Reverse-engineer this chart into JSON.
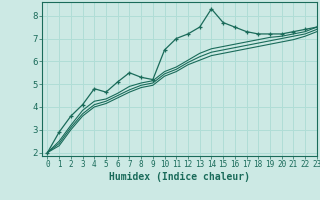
{
  "title": "",
  "xlabel": "Humidex (Indice chaleur)",
  "bg_color": "#cce9e4",
  "grid_color": "#b0ddd6",
  "line_color": "#1a6b5a",
  "xlim": [
    -0.5,
    23
  ],
  "ylim": [
    1.85,
    8.6
  ],
  "xticks": [
    0,
    1,
    2,
    3,
    4,
    5,
    6,
    7,
    8,
    9,
    10,
    11,
    12,
    13,
    14,
    15,
    16,
    17,
    18,
    19,
    20,
    21,
    22,
    23
  ],
  "yticks": [
    2,
    3,
    4,
    5,
    6,
    7,
    8
  ],
  "series": [
    [
      2.0,
      2.9,
      3.6,
      4.1,
      4.8,
      4.65,
      5.1,
      5.5,
      5.3,
      5.2,
      6.5,
      7.0,
      7.2,
      7.5,
      8.3,
      7.7,
      7.5,
      7.3,
      7.2,
      7.2,
      7.2,
      7.3,
      7.4,
      7.5
    ],
    [
      2.0,
      2.5,
      3.2,
      3.85,
      4.25,
      4.35,
      4.6,
      4.9,
      5.05,
      5.15,
      5.55,
      5.75,
      6.05,
      6.35,
      6.55,
      6.65,
      6.75,
      6.85,
      6.95,
      7.05,
      7.1,
      7.2,
      7.3,
      7.5
    ],
    [
      2.0,
      2.4,
      3.1,
      3.7,
      4.1,
      4.25,
      4.5,
      4.75,
      4.95,
      5.05,
      5.45,
      5.65,
      5.95,
      6.2,
      6.4,
      6.5,
      6.6,
      6.7,
      6.8,
      6.9,
      7.0,
      7.1,
      7.2,
      7.4
    ],
    [
      2.0,
      2.3,
      3.0,
      3.6,
      4.0,
      4.15,
      4.4,
      4.65,
      4.85,
      4.95,
      5.35,
      5.55,
      5.85,
      6.05,
      6.25,
      6.35,
      6.45,
      6.55,
      6.65,
      6.75,
      6.85,
      6.95,
      7.1,
      7.3
    ]
  ]
}
